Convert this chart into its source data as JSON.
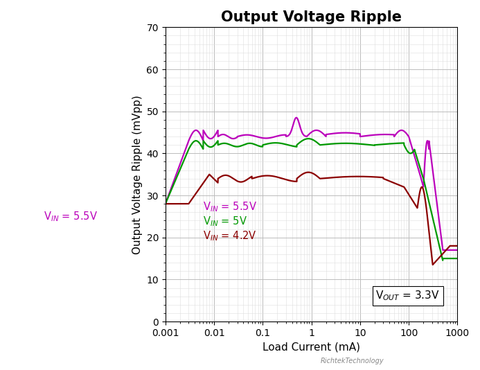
{
  "title": "Output Voltage Ripple",
  "xlabel": "Load Current (mA)",
  "ylabel": "Output Voltage Ripple (mVpp)",
  "ylim": [
    0,
    70
  ],
  "yticks": [
    0,
    10,
    20,
    30,
    40,
    50,
    60,
    70
  ],
  "annotation_text": "V$_{OUT}$ = 3.3V",
  "legend": [
    {
      "label": "V$_{IN}$ = 5.5V",
      "color": "#BB00BB"
    },
    {
      "label": "V$_{IN}$ = 5V",
      "color": "#009900"
    },
    {
      "label": "V$_{IN}$ = 4.2V",
      "color": "#8B0000"
    }
  ],
  "bg_color": "#FFFFFF",
  "grid_major_color": "#BBBBBB",
  "grid_minor_color": "#DDDDDD",
  "title_fontsize": 15,
  "label_fontsize": 11,
  "tick_fontsize": 10
}
